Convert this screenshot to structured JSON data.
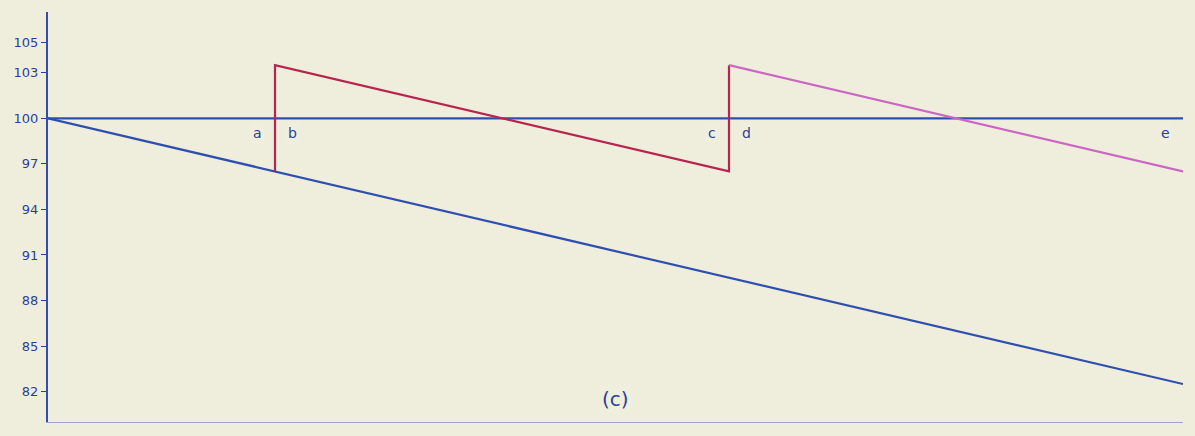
{
  "chart_data": {
    "type": "line",
    "series": [
      {
        "color": "#2f4fb0",
        "line_style": "solid",
        "x": [
          0,
          100
        ],
        "values": [
          100,
          100
        ]
      },
      {
        "color": "#2f4fb0",
        "line_style": "solid",
        "x": [
          0,
          100
        ],
        "values": [
          100,
          82.5
        ]
      },
      {
        "color": "#b8234f",
        "line_style": "solid",
        "x": [
          20,
          20,
          60,
          60
        ],
        "values": [
          96.5,
          103.5,
          96.5,
          103.5
        ]
      },
      {
        "color": "#cc66c4",
        "line_style": "solid",
        "x": [
          60,
          100
        ],
        "values": [
          103.5,
          96.5
        ]
      }
    ],
    "xlim": [
      0,
      100
    ],
    "xticks": [],
    "ylim": [
      80,
      107
    ],
    "yticks": [
      82,
      85,
      88,
      91,
      94,
      97,
      100,
      103,
      105
    ],
    "grid": false,
    "tick_labels": "y",
    "annotations": [
      {
        "text": "a",
        "x": 18.5,
        "y": 99
      },
      {
        "text": "b",
        "x": 21.5,
        "y": 99
      },
      {
        "text": "c",
        "x": 58.5,
        "y": 99
      },
      {
        "text": "d",
        "x": 61.5,
        "y": 99
      },
      {
        "text": "e",
        "x": 98.5,
        "y": 99
      },
      {
        "text": "(c)",
        "x": 50,
        "y": 81.5
      }
    ]
  }
}
